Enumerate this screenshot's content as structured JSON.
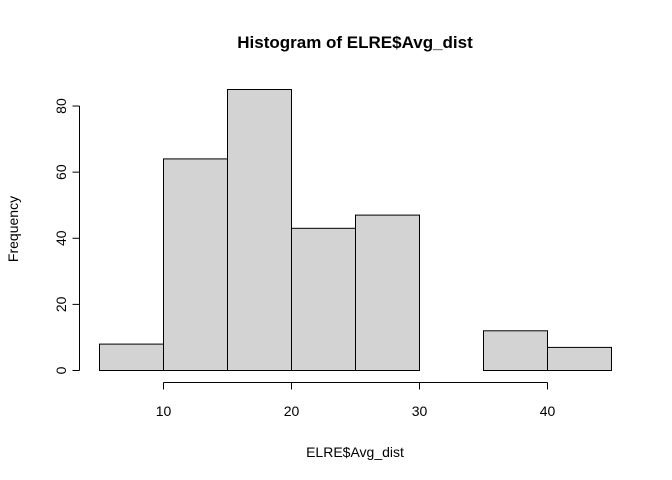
{
  "chart_data": {
    "type": "bar",
    "title": "Histogram of ELRE$Avg_dist",
    "xlabel": "ELRE$Avg_dist",
    "ylabel": "Frequency",
    "bins": [
      {
        "start": 5,
        "end": 10,
        "count": 8
      },
      {
        "start": 10,
        "end": 15,
        "count": 64
      },
      {
        "start": 15,
        "end": 20,
        "count": 85
      },
      {
        "start": 20,
        "end": 25,
        "count": 43
      },
      {
        "start": 25,
        "end": 30,
        "count": 47
      },
      {
        "start": 30,
        "end": 35,
        "count": 0
      },
      {
        "start": 35,
        "end": 40,
        "count": 12
      },
      {
        "start": 40,
        "end": 45,
        "count": 7
      }
    ],
    "xlim": [
      5,
      45
    ],
    "ylim": [
      0,
      85
    ],
    "x_ticks": [
      10,
      20,
      30,
      40
    ],
    "y_ticks": [
      0,
      20,
      40,
      60,
      80
    ],
    "grid": false,
    "legend": "none",
    "bar_color": "#d3d3d3",
    "edge_color": "#000000"
  }
}
